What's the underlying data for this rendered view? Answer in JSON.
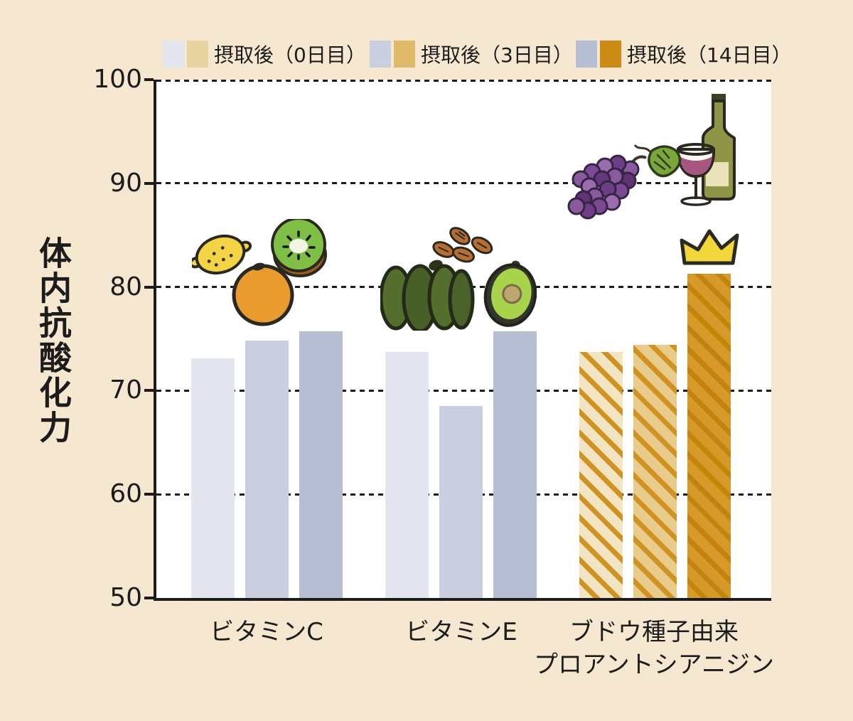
{
  "page": {
    "background": "#f6e8d0",
    "plot_background": "#ffffff",
    "text_color": "#1c1c1c"
  },
  "legend": {
    "entries": [
      {
        "label": "摂取後（0日目）",
        "swatch_gray": "#e4e6ef",
        "swatch_gold": "#e6d3a0"
      },
      {
        "label": "摂取後（3日目）",
        "swatch_gray": "#c9cfde",
        "swatch_gold": "#dfba69"
      },
      {
        "label": "摂取後（14日目）",
        "swatch_gray": "#b5bed2",
        "swatch_gold": "#ca8c14"
      }
    ]
  },
  "chart_data": {
    "type": "bar",
    "title": "",
    "ylabel": "体内抗酸化力",
    "xlabel": "",
    "ylim": [
      50,
      100
    ],
    "yticks": [
      50,
      60,
      70,
      80,
      90,
      100
    ],
    "grid": "horizontal dashed",
    "legend_position": "top",
    "categories": [
      "ビタミンC",
      "ビタミンE",
      "ブドウ種子由来\nプロアントシアニジン"
    ],
    "series": [
      {
        "name": "摂取後（0日目）",
        "values": [
          73.1,
          73.7,
          73.7
        ]
      },
      {
        "name": "摂取後（3日目）",
        "values": [
          74.8,
          68.5,
          74.4
        ]
      },
      {
        "name": "摂取後（14日目）",
        "values": [
          75.7,
          75.7,
          81.3
        ]
      }
    ],
    "annotations": [
      {
        "type": "crown",
        "target": "ブドウ種子由来プロアントシアニジン 摂取後（14日目）"
      }
    ]
  },
  "colors": {
    "axis": "#1c1c1c",
    "gray_series": [
      "#e4e6ef",
      "#c9cfde",
      "#b5bed2"
    ],
    "gold_series": [
      "#e6d3a0",
      "#dfba69",
      "#ca8c14"
    ],
    "grape_hatch": [
      {
        "base": "#f3e4c2",
        "stripe": "#d09220"
      },
      {
        "base": "#e9cb8c",
        "stripe": "#d09220"
      },
      {
        "base": "#d59a2a",
        "stripe": "#c5830c"
      }
    ]
  },
  "illustrations": {
    "vitamin_c": [
      "lemon",
      "orange",
      "kiwi-half"
    ],
    "vitamin_e": [
      "almonds",
      "green-pepper",
      "avocado-half"
    ],
    "grape_seed": [
      "grape-bunch",
      "grape-leaf",
      "wine-glass",
      "wine-bottle"
    ],
    "winner_mark": "crown"
  }
}
